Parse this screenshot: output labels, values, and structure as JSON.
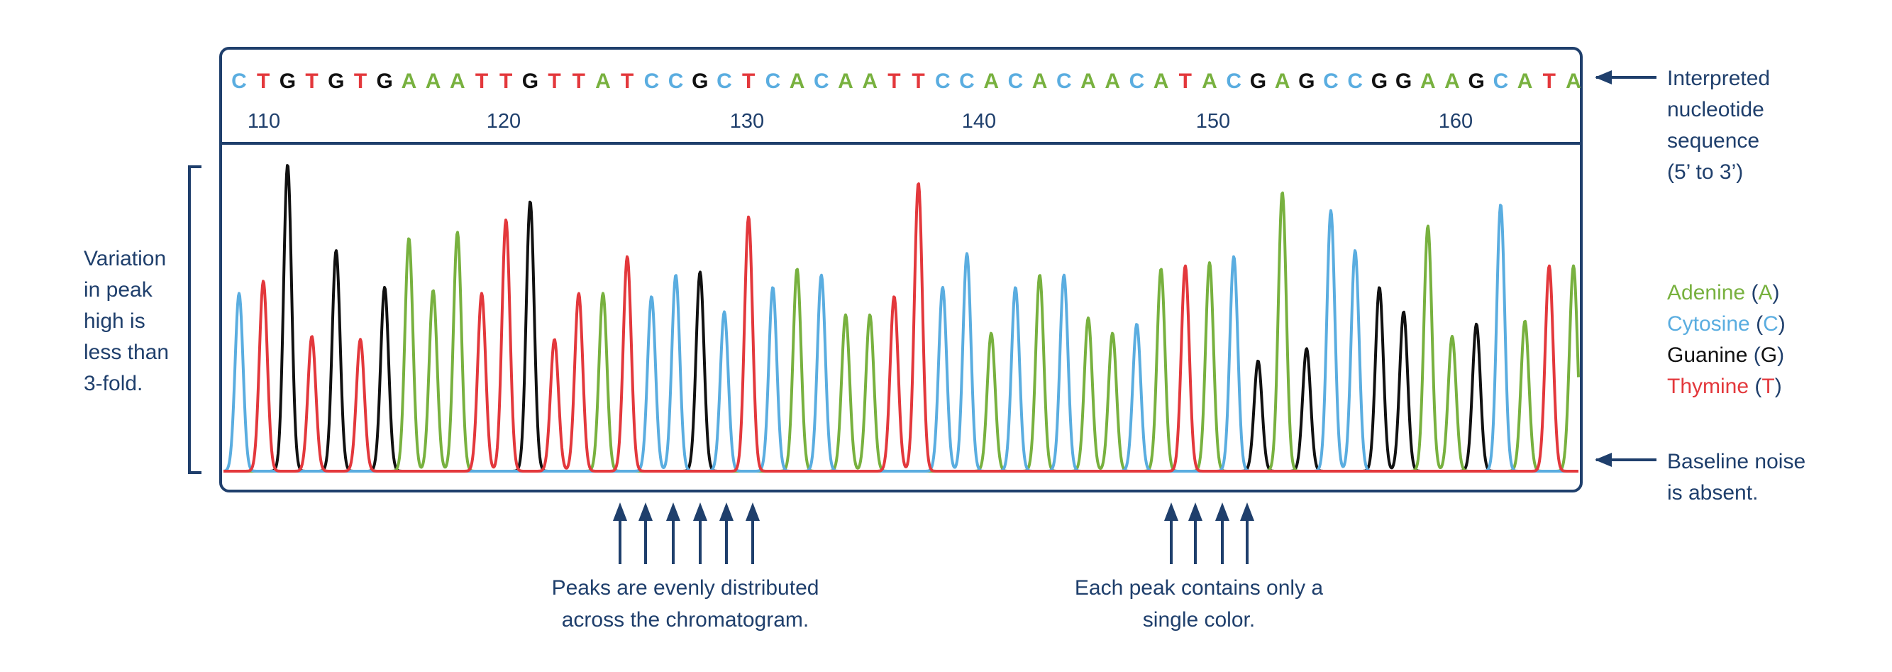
{
  "colors": {
    "A": "#78b13f",
    "C": "#5aade0",
    "G": "#111111",
    "T": "#e3383c",
    "navy": "#1f3f6c",
    "text": "#1f3f6c"
  },
  "sequence": "CTGTGTGAAATTGTTATCCGCTCACAATTCCACACAACATACGAGCCGGAAGCATA",
  "position_labels": [
    "110",
    "120",
    "130",
    "140",
    "150",
    "160"
  ],
  "annotations": {
    "sequence_label": [
      "Interpreted",
      "nucleotide",
      "sequence",
      "(5’ to 3’)"
    ],
    "variation_label": [
      "Variation",
      "in peak",
      "high is",
      "less than",
      "3-fold."
    ],
    "baseline_label": [
      "Baseline noise",
      "is absent."
    ],
    "peaks_distributed_label": [
      "Peaks are evenly distributed",
      "across the chromatogram."
    ],
    "single_color_label": [
      "Each peak contains only a",
      "single color."
    ]
  },
  "legend": [
    {
      "name": "Adenine",
      "letter": "A",
      "color": "#78b13f"
    },
    {
      "name": "Cytosine",
      "letter": "C",
      "color": "#5aade0"
    },
    {
      "name": "Guanine",
      "letter": "G",
      "color": "#111111"
    },
    {
      "name": "Thymine",
      "letter": "T",
      "color": "#e3383c"
    }
  ],
  "chart_data": {
    "type": "line",
    "description_free": true,
    "peaks": [
      {
        "base": "C",
        "height": 0.58
      },
      {
        "base": "T",
        "height": 0.62
      },
      {
        "base": "G",
        "height": 1.0
      },
      {
        "base": "T",
        "height": 0.44
      },
      {
        "base": "G",
        "height": 0.72
      },
      {
        "base": "T",
        "height": 0.43
      },
      {
        "base": "G",
        "height": 0.6
      },
      {
        "base": "A",
        "height": 0.76
      },
      {
        "base": "A",
        "height": 0.59
      },
      {
        "base": "A",
        "height": 0.78
      },
      {
        "base": "T",
        "height": 0.58
      },
      {
        "base": "T",
        "height": 0.82
      },
      {
        "base": "G",
        "height": 0.88
      },
      {
        "base": "T",
        "height": 0.43
      },
      {
        "base": "T",
        "height": 0.58
      },
      {
        "base": "A",
        "height": 0.58
      },
      {
        "base": "T",
        "height": 0.7
      },
      {
        "base": "C",
        "height": 0.57
      },
      {
        "base": "C",
        "height": 0.64
      },
      {
        "base": "G",
        "height": 0.65
      },
      {
        "base": "C",
        "height": 0.52
      },
      {
        "base": "T",
        "height": 0.83
      },
      {
        "base": "C",
        "height": 0.6
      },
      {
        "base": "A",
        "height": 0.66
      },
      {
        "base": "C",
        "height": 0.64
      },
      {
        "base": "A",
        "height": 0.51
      },
      {
        "base": "A",
        "height": 0.51
      },
      {
        "base": "T",
        "height": 0.57
      },
      {
        "base": "T",
        "height": 0.94
      },
      {
        "base": "C",
        "height": 0.6
      },
      {
        "base": "C",
        "height": 0.71
      },
      {
        "base": "A",
        "height": 0.45
      },
      {
        "base": "C",
        "height": 0.6
      },
      {
        "base": "A",
        "height": 0.64
      },
      {
        "base": "C",
        "height": 0.64
      },
      {
        "base": "A",
        "height": 0.5
      },
      {
        "base": "A",
        "height": 0.45
      },
      {
        "base": "C",
        "height": 0.48
      },
      {
        "base": "A",
        "height": 0.66
      },
      {
        "base": "T",
        "height": 0.67
      },
      {
        "base": "A",
        "height": 0.68
      },
      {
        "base": "C",
        "height": 0.7
      },
      {
        "base": "G",
        "height": 0.36
      },
      {
        "base": "A",
        "height": 0.91
      },
      {
        "base": "G",
        "height": 0.4
      },
      {
        "base": "C",
        "height": 0.85
      },
      {
        "base": "C",
        "height": 0.72
      },
      {
        "base": "G",
        "height": 0.6
      },
      {
        "base": "G",
        "height": 0.52
      },
      {
        "base": "A",
        "height": 0.8
      },
      {
        "base": "A",
        "height": 0.44
      },
      {
        "base": "G",
        "height": 0.48
      },
      {
        "base": "C",
        "height": 0.87
      },
      {
        "base": "A",
        "height": 0.49
      },
      {
        "base": "T",
        "height": 0.67
      },
      {
        "base": "A",
        "height": 0.67
      }
    ]
  }
}
